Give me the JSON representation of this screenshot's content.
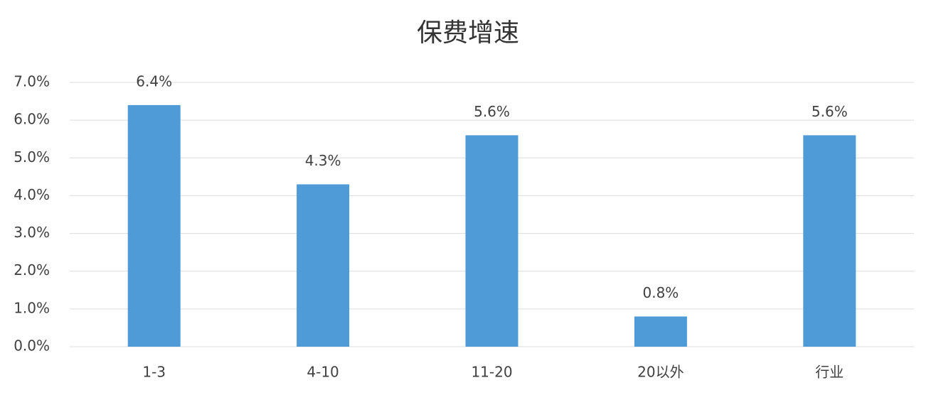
{
  "chart_data": {
    "type": "bar",
    "title": "保费增速",
    "categories": [
      "1-3",
      "4-10",
      "11-20",
      "20以外",
      "行业"
    ],
    "values": [
      6.4,
      4.3,
      5.6,
      0.8,
      5.6
    ],
    "value_labels": [
      "6.4%",
      "4.3%",
      "5.6%",
      "0.8%",
      "5.6%"
    ],
    "color": "#4f9bd7",
    "ylim": [
      0,
      7
    ],
    "yticks": [
      {
        "value": 0,
        "label": "0.0%"
      },
      {
        "value": 1,
        "label": "1.0%"
      },
      {
        "value": 2,
        "label": "2.0%"
      },
      {
        "value": 3,
        "label": "3.0%"
      },
      {
        "value": 4,
        "label": "4.0%"
      },
      {
        "value": 5,
        "label": "5.0%"
      },
      {
        "value": 6,
        "label": "6.0%"
      },
      {
        "value": 7,
        "label": "7.0%"
      }
    ],
    "grid": true
  }
}
